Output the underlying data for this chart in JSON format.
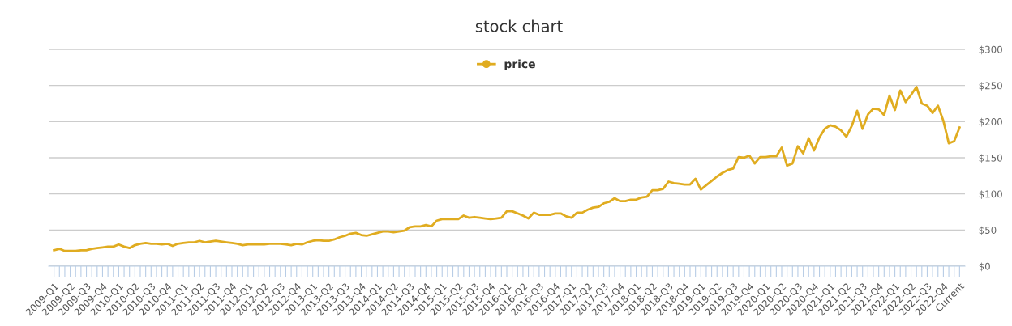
{
  "chart_data": {
    "type": "line",
    "title": "stock chart",
    "categories": [
      "2009-Q1",
      null,
      null,
      "2009-Q2",
      null,
      null,
      "2009-Q3",
      null,
      null,
      "2009-Q4",
      null,
      null,
      "2010-Q1",
      null,
      null,
      "2010-Q2",
      null,
      null,
      "2010-Q3",
      null,
      null,
      "2010-Q4",
      null,
      null,
      "2011-Q1",
      null,
      null,
      "2011-Q2",
      null,
      null,
      "2011-Q3",
      null,
      null,
      "2011-Q4",
      null,
      null,
      "2012-Q1",
      null,
      null,
      "2012-Q2",
      null,
      null,
      "2012-Q3",
      null,
      null,
      "2012-Q4",
      null,
      null,
      "2013-Q1",
      null,
      null,
      "2013-Q2",
      null,
      null,
      "2013-Q3",
      null,
      null,
      "2013-Q4",
      null,
      null,
      "2014-Q1",
      null,
      null,
      "2014-Q2",
      null,
      null,
      "2014-Q3",
      null,
      null,
      "2014-Q4",
      null,
      null,
      "2015-Q1",
      null,
      null,
      "2015-Q2",
      null,
      null,
      "2015-Q3",
      null,
      null,
      "2015-Q4",
      null,
      null,
      "2016-Q1",
      null,
      null,
      "2016-Q2",
      null,
      null,
      "2016-Q3",
      null,
      null,
      "2016-Q4",
      null,
      null,
      "2017-Q1",
      null,
      null,
      "2017-Q2",
      null,
      null,
      "2017-Q3",
      null,
      null,
      "2017-Q4",
      null,
      null,
      "2018-Q1",
      null,
      null,
      "2018-Q2",
      null,
      null,
      "2018-Q3",
      null,
      null,
      "2018-Q4",
      null,
      null,
      "2019-Q1",
      null,
      null,
      "2019-Q2",
      null,
      null,
      "2019-Q3",
      null,
      null,
      "2019-Q4",
      null,
      null,
      "2020-Q1",
      null,
      null,
      "2020-Q2",
      null,
      null,
      "2020-Q3",
      null,
      null,
      "2020-Q4",
      null,
      null,
      "2021-Q1",
      null,
      null,
      "2021-Q2",
      null,
      null,
      "2021-Q3",
      null,
      null,
      "2021-Q4",
      null,
      null,
      "2022-Q1",
      null,
      null,
      "2022-Q2",
      null,
      null,
      "2022-Q3",
      null,
      null,
      "2022-Q4",
      null,
      null,
      "Current"
    ],
    "series": [
      {
        "name": "price",
        "color": "#e0ac20",
        "values": [
          22,
          24,
          21,
          21,
          21,
          22,
          22,
          24,
          25,
          26,
          27,
          27,
          30,
          27,
          25,
          29,
          31,
          32,
          31,
          31,
          30,
          31,
          28,
          31,
          32,
          33,
          33,
          35,
          33,
          34,
          35,
          34,
          33,
          32,
          31,
          29,
          30,
          30,
          30,
          30,
          31,
          31,
          31,
          30,
          29,
          31,
          30,
          33,
          35,
          36,
          35,
          35,
          37,
          40,
          42,
          45,
          46,
          43,
          42,
          44,
          46,
          48,
          48,
          47,
          48,
          49,
          54,
          55,
          55,
          57,
          55,
          63,
          65,
          65,
          65,
          65,
          70,
          67,
          68,
          67,
          66,
          65,
          66,
          67,
          76,
          76,
          73,
          70,
          66,
          74,
          71,
          71,
          71,
          73,
          73,
          69,
          67,
          74,
          74,
          78,
          81,
          82,
          87,
          89,
          94,
          90,
          90,
          92,
          92,
          95,
          96,
          105,
          105,
          107,
          117,
          115,
          114,
          113,
          113,
          121,
          106,
          112,
          118,
          124,
          129,
          133,
          135,
          151,
          150,
          153,
          142,
          151,
          151,
          152,
          152,
          164,
          139,
          142,
          166,
          156,
          177,
          160,
          178,
          190,
          195,
          193,
          188,
          179,
          194,
          215,
          190,
          210,
          218,
          217,
          209,
          236,
          216,
          243,
          227,
          237,
          248,
          225,
          222,
          212,
          222,
          201,
          170,
          173,
          192
        ]
      }
    ],
    "ylim": [
      0,
      300
    ],
    "yticks": [
      {
        "value": 0,
        "label": "$0"
      },
      {
        "value": 50,
        "label": "$50"
      },
      {
        "value": 100,
        "label": "$100"
      },
      {
        "value": 150,
        "label": "$150"
      },
      {
        "value": 200,
        "label": "$200"
      },
      {
        "value": 250,
        "label": "$250"
      },
      {
        "value": 300,
        "label": "$300"
      }
    ],
    "grid": "y",
    "legend": "top",
    "marker": "none",
    "line_style": "solid"
  }
}
